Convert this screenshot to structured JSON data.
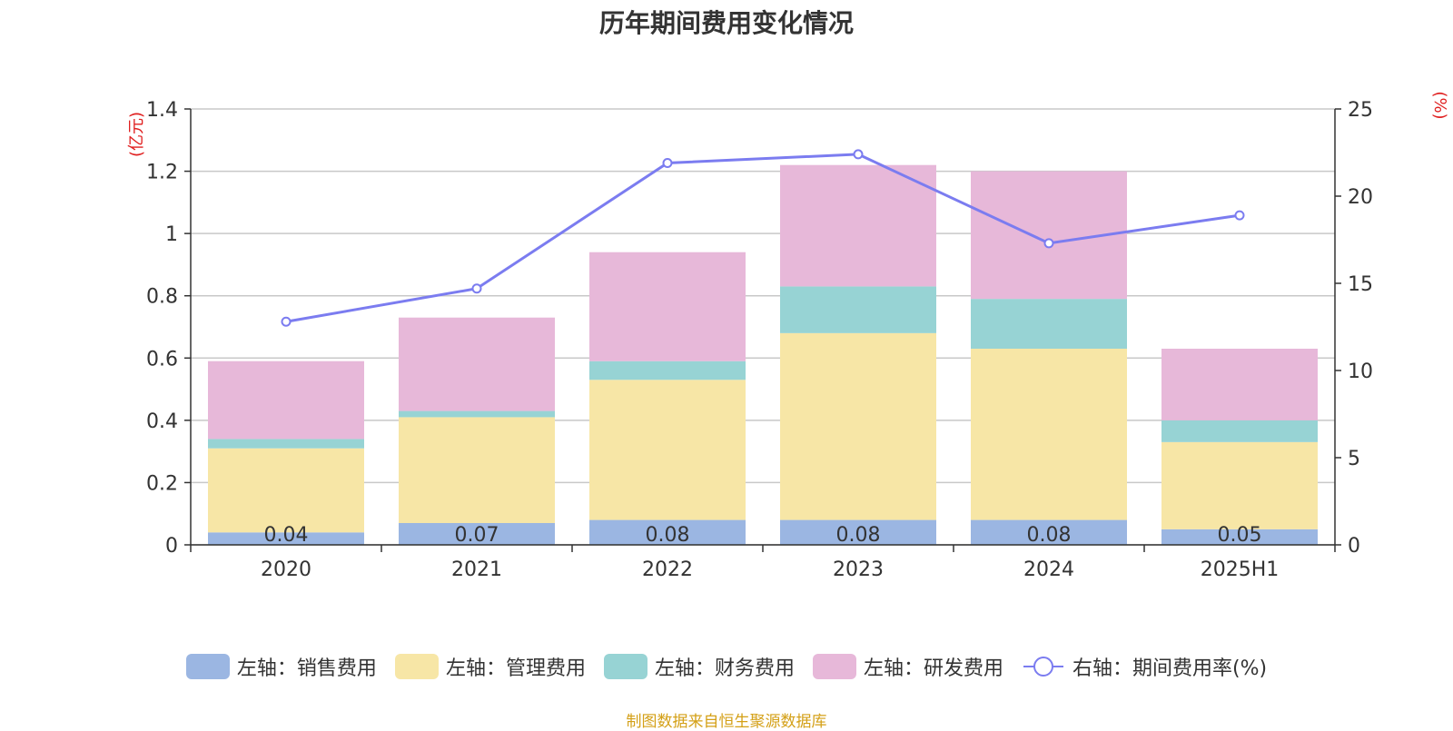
{
  "chart_data": {
    "type": "bar",
    "title": "历年期间费用变化情况",
    "categories": [
      "2020",
      "2021",
      "2022",
      "2023",
      "2024",
      "2025H1"
    ],
    "left_axis": {
      "label": "(亿元)",
      "ylim": [
        0,
        1.4
      ],
      "ticks": [
        "0",
        "0.2",
        "0.4",
        "0.6",
        "0.8",
        "1",
        "1.2",
        "1.4"
      ]
    },
    "right_axis": {
      "label": "(%)",
      "ylim": [
        0,
        25
      ],
      "ticks": [
        "0",
        "5",
        "10",
        "15",
        "20",
        "25"
      ]
    },
    "series": [
      {
        "name": "左轴：销售费用",
        "type": "bar",
        "axis": "left",
        "color": "#9bb6e2",
        "values": [
          0.04,
          0.07,
          0.08,
          0.08,
          0.08,
          0.05
        ],
        "data_labels": [
          "0.04",
          "0.07",
          "0.08",
          "0.08",
          "0.08",
          "0.05"
        ]
      },
      {
        "name": "左轴：管理费用",
        "type": "bar",
        "axis": "left",
        "color": "#f7e6a6",
        "values": [
          0.27,
          0.34,
          0.45,
          0.6,
          0.55,
          0.28
        ]
      },
      {
        "name": "左轴：财务费用",
        "type": "bar",
        "axis": "left",
        "color": "#97d3d4",
        "values": [
          0.03,
          0.02,
          0.06,
          0.15,
          0.16,
          0.07
        ]
      },
      {
        "name": "左轴：研发费用",
        "type": "bar",
        "axis": "left",
        "color": "#e7b8d9",
        "values": [
          0.25,
          0.3,
          0.35,
          0.39,
          0.41,
          0.23
        ]
      },
      {
        "name": "右轴：期间费用率(%)",
        "type": "line",
        "axis": "right",
        "color": "#7b7cf0",
        "values": [
          12.8,
          14.7,
          21.9,
          22.4,
          17.3,
          18.9
        ]
      }
    ],
    "grid": true,
    "legend_position": "bottom"
  },
  "footer": {
    "source": "制图数据来自恒生聚源数据库"
  }
}
